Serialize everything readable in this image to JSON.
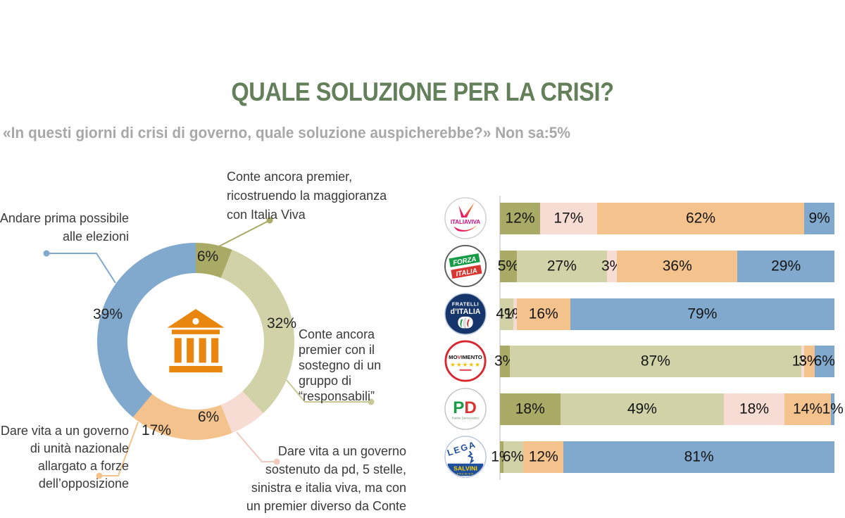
{
  "page": {
    "title": "QUALE SOLUZIONE PER LA CRISI?",
    "subtitle": "«In questi giorni di crisi di governo, quale soluzione auspicherebbe?» Non sa:5%"
  },
  "palette": {
    "conte_con_italia_viva": "#a9aa66",
    "conte_con_responsabili": "#d2d2a8",
    "premier_diverso": "#f6dcd2",
    "unita_nazionale": "#f4c28c",
    "elezioni": "#80a9cd",
    "title_green": "#64805a",
    "subtitle_gray": "#a8a8a8",
    "icon_orange": "#e8860f"
  },
  "chart_data": [
    {
      "type": "pie",
      "variant": "donut",
      "question": "«In questi giorni di crisi di governo, quale soluzione auspicherebbe?»",
      "non_sa": "Non sa:5%",
      "center_icon": "bank-building-icon",
      "segments": [
        {
          "label": "Conte ancora premier, ricostruendo la maggioranza con Italia Viva",
          "value": 6,
          "color": "#a9aa66"
        },
        {
          "label": "Conte ancora premier con il sostegno di un gruppo di “responsabili”",
          "value": 32,
          "color": "#d2d2a8"
        },
        {
          "label": "Dare vita a un governo sostenuto da pd, 5 stelle, sinistra e italia viva, ma con un premier diverso da Conte",
          "value": 6,
          "color": "#f6dcd2"
        },
        {
          "label": "Dare vita a un governo di unità nazionale allargato a forze dell’opposizione",
          "value": 17,
          "color": "#f4c28c"
        },
        {
          "label": "Andare prima possibile alle elezioni",
          "value": 39,
          "color": "#80a9cd"
        }
      ],
      "callouts": [
        {
          "lines": [
            "Conte ancora premier,",
            "ricostruendo la maggioranza",
            "con Italia Viva"
          ]
        },
        {
          "lines": [
            "Conte ancora",
            "premier con il",
            "sostegno di un",
            "gruppo di",
            "“responsabili”"
          ]
        },
        {
          "lines": [
            "Dare vita a un governo",
            "sostenuto da pd, 5 stelle,",
            "sinistra e italia viva, ma con",
            "un premier diverso da Conte"
          ]
        },
        {
          "lines": [
            "Dare vita a un governo",
            "di unità nazionale",
            "allargato a forze",
            "dell’opposizione"
          ]
        },
        {
          "lines": [
            "Andare prima possibile",
            "alle elezioni"
          ]
        }
      ]
    },
    {
      "type": "bar",
      "variant": "stacked-horizontal",
      "value_suffix": "%",
      "xlim": [
        0,
        100
      ],
      "legend": "none",
      "categories": [
        "Conte ancora premier, ricostruendo la maggioranza con Italia Viva",
        "Conte ancora premier con il sostegno di un gruppo di “responsabili”",
        "Dare vita a un governo sostenuto da pd, 5 stelle, sinistra e italia viva, ma con un premier diverso da Conte",
        "Dare vita a un governo di unità nazionale allargato a forze dell’opposizione",
        "Andare prima possibile alle elezioni"
      ],
      "rows": [
        {
          "party": "Italia Viva",
          "logo_lines": [
            "ITALIAVIVA"
          ],
          "values": [
            12,
            0,
            17,
            62,
            9
          ]
        },
        {
          "party": "Forza Italia",
          "logo_lines": [
            "FORZA",
            "ITALIA"
          ],
          "values": [
            5,
            27,
            3,
            36,
            29
          ]
        },
        {
          "party": "Fratelli d'Italia",
          "logo_lines": [
            "FRATELLI",
            "d’ITALIA"
          ],
          "values": [
            0,
            4,
            1,
            16,
            79
          ]
        },
        {
          "party": "Movimento 5 Stelle",
          "logo_lines": [
            "MOVIMENTO",
            "★★★★★"
          ],
          "values": [
            3,
            87,
            1,
            3,
            6
          ]
        },
        {
          "party": "Partito Democratico",
          "logo_lines": [
            "PD",
            "Partito Democratico"
          ],
          "values": [
            18,
            49,
            18,
            14,
            1
          ]
        },
        {
          "party": "Lega",
          "logo_lines": [
            "LEGA",
            "SALVINI",
            "PREMIER"
          ],
          "values": [
            1,
            6,
            0,
            12,
            81
          ]
        }
      ]
    }
  ]
}
